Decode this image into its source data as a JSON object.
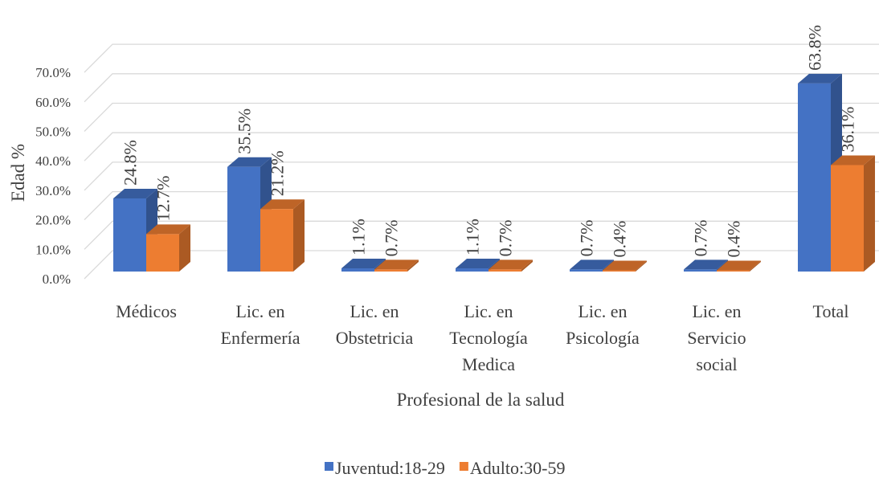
{
  "chart_data": {
    "type": "bar3d",
    "x_label": "Profesional de la salud",
    "y_label": "Edad %",
    "categories": [
      "Médicos",
      "Lic. en Enfermería",
      "Lic. en Obstetricia",
      "Lic. en Tecnología Medica",
      "Lic. en Psicología",
      "Lic. en Servicio social",
      "Total"
    ],
    "series": [
      {
        "name": "Juventud:18-29",
        "color": "#4472c4",
        "values": [
          24.8,
          35.5,
          1.1,
          1.1,
          0.7,
          0.7,
          63.8
        ],
        "value_labels": [
          "24.8%",
          "35.5%",
          "1.1%",
          "1.1%",
          "0.7%",
          "0.7%",
          "63.8%"
        ]
      },
      {
        "name": "Adulto:30-59",
        "color": "#ed7d31",
        "values": [
          12.7,
          21.2,
          0.7,
          0.7,
          0.4,
          0.4,
          36.1
        ],
        "value_labels": [
          "12.7%",
          "21.2%",
          "0.7%",
          "0.7%",
          "0.4%",
          "0.4%",
          "36.1%"
        ]
      }
    ],
    "ylim": [
      0,
      70
    ],
    "yticks": [
      {
        "value": 0,
        "label": "0.0%"
      },
      {
        "value": 10,
        "label": "10.0%"
      },
      {
        "value": 20,
        "label": "20.0%"
      },
      {
        "value": 30,
        "label": "30.0%"
      },
      {
        "value": 40,
        "label": "40.0%"
      },
      {
        "value": 50,
        "label": "50.0%"
      },
      {
        "value": 60,
        "label": "60.0%"
      },
      {
        "value": 70,
        "label": "70.0%"
      }
    ],
    "grid": true,
    "legend": "bottom"
  }
}
